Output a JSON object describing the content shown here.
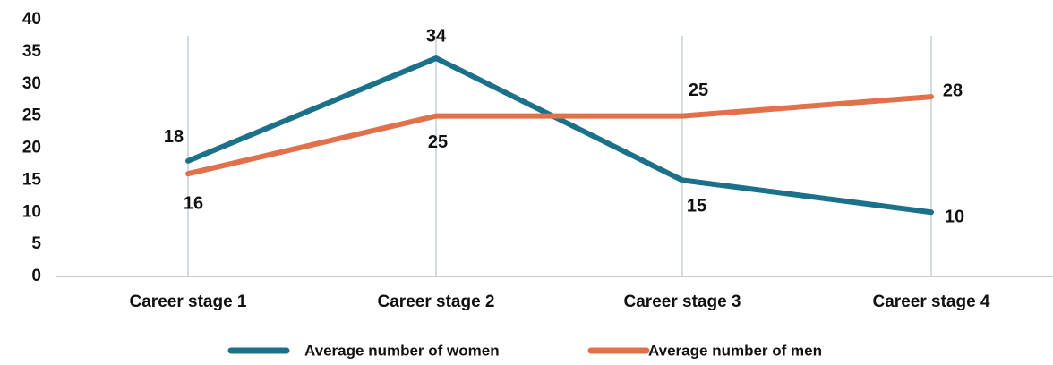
{
  "chart_data": {
    "type": "line",
    "categories": [
      "Career stage 1",
      "Career stage 2",
      "Career stage 3",
      "Career stage 4"
    ],
    "series": [
      {
        "name": "Average number of women",
        "color": "#1b7189",
        "values": [
          18,
          34,
          15,
          10
        ]
      },
      {
        "name": "Average number of men",
        "color": "#e0714a",
        "values": [
          16,
          25,
          25,
          28
        ]
      }
    ],
    "ylim": [
      0,
      40
    ],
    "yticks": [
      0,
      5,
      10,
      15,
      20,
      25,
      30,
      35,
      40
    ]
  }
}
